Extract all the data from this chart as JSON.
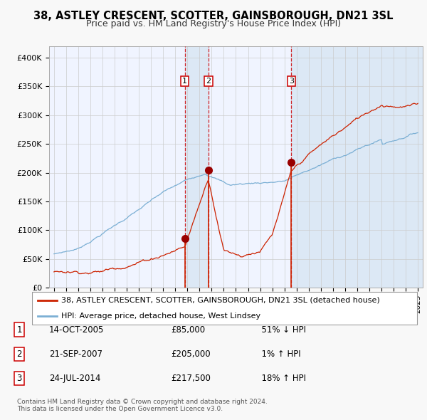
{
  "title": "38, ASTLEY CRESCENT, SCOTTER, GAINSBOROUGH, DN21 3SL",
  "subtitle": "Price paid vs. HM Land Registry's House Price Index (HPI)",
  "title_fontsize": 10.5,
  "subtitle_fontsize": 9,
  "background_color": "#f8f8f8",
  "plot_bg_color": "#f0f4ff",
  "grid_color": "#cccccc",
  "hpi_line_color": "#7bafd4",
  "price_line_color": "#cc2200",
  "sale_marker_color": "#990000",
  "sale_vline_color": "#cc0000",
  "shade_color": "#dce8f5",
  "ylim": [
    0,
    420000
  ],
  "yticks": [
    0,
    50000,
    100000,
    150000,
    200000,
    250000,
    300000,
    350000,
    400000
  ],
  "xmin": 1994.6,
  "xmax": 2025.4,
  "sales": [
    {
      "date_dec": 2005.79,
      "price": 85000,
      "label": "1",
      "date_str": "14-OCT-2005",
      "pct": "51%",
      "dir": "↓"
    },
    {
      "date_dec": 2007.73,
      "price": 205000,
      "label": "2",
      "date_str": "21-SEP-2007",
      "pct": "1%",
      "dir": "↑"
    },
    {
      "date_dec": 2014.56,
      "price": 217500,
      "label": "3",
      "date_str": "24-JUL-2014",
      "pct": "18%",
      "dir": "↑"
    }
  ],
  "legend_house_label": "38, ASTLEY CRESCENT, SCOTTER, GAINSBOROUGH, DN21 3SL (detached house)",
  "legend_hpi_label": "HPI: Average price, detached house, West Lindsey",
  "footer": "Contains HM Land Registry data © Crown copyright and database right 2024.\nThis data is licensed under the Open Government Licence v3.0."
}
